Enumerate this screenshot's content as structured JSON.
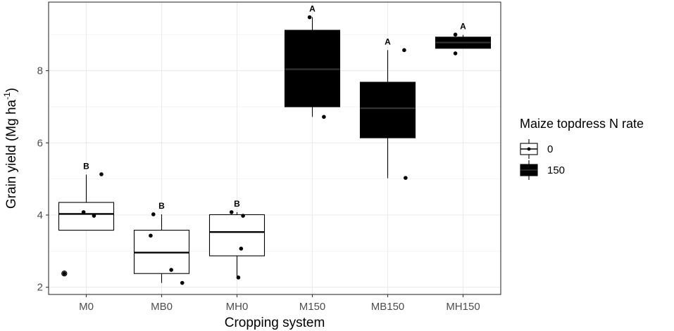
{
  "chart_data": {
    "type": "box",
    "xlabel": "Cropping system",
    "ylabel": "Grain yield (Mg ha",
    "ylabel_sup": "-1",
    "ylabel_close": ")",
    "ylim": [
      1.8,
      9.9
    ],
    "yticks": [
      2,
      4,
      6,
      8
    ],
    "y_tick_labels": [
      "2",
      "4",
      "6",
      "8"
    ],
    "grid": true,
    "legend": {
      "title": "Maize topdress N rate",
      "position": "right",
      "entries": [
        {
          "label": "0",
          "fill": "#ffffff"
        },
        {
          "label": "150",
          "fill": "#000000"
        }
      ]
    },
    "categories": [
      "M0",
      "MB0",
      "MH0",
      "M150",
      "MB150",
      "MH150"
    ],
    "boxes": [
      {
        "category": "M0",
        "group": "0",
        "whisker_low": 3.58,
        "q1": 3.58,
        "median": 4.03,
        "q3": 4.35,
        "whisker_high": 5.12,
        "letter": "B",
        "outliers": [
          2.38
        ],
        "points": [
          [
            -0.1,
            4.08
          ],
          [
            0.55,
            5.13
          ],
          [
            0.28,
            3.98
          ],
          [
            -0.8,
            2.38
          ]
        ]
      },
      {
        "category": "MB0",
        "group": "0",
        "whisker_low": 2.12,
        "q1": 2.38,
        "median": 2.96,
        "q3": 3.58,
        "whisker_high": 4.02,
        "letter": "B",
        "outliers": [],
        "points": [
          [
            -0.4,
            3.43
          ],
          [
            -0.3,
            4.02
          ],
          [
            0.35,
            2.48
          ],
          [
            0.75,
            2.12
          ]
        ]
      },
      {
        "category": "MH0",
        "group": "0",
        "whisker_low": 2.25,
        "q1": 2.87,
        "median": 3.53,
        "q3": 4.01,
        "whisker_high": 4.08,
        "letter": "B",
        "outliers": [],
        "points": [
          [
            -0.2,
            4.08
          ],
          [
            0.22,
            3.98
          ],
          [
            0.15,
            3.07
          ],
          [
            0.05,
            2.27
          ]
        ]
      },
      {
        "category": "M150",
        "group": "150",
        "whisker_low": 6.72,
        "q1": 7.0,
        "median": 8.04,
        "q3": 9.12,
        "whisker_high": 9.48,
        "letter": "A",
        "outliers": [],
        "points": [
          [
            -0.1,
            9.48
          ],
          [
            0.42,
            6.72
          ]
        ]
      },
      {
        "category": "MB150",
        "group": "150",
        "whisker_low": 5.02,
        "q1": 6.14,
        "median": 6.96,
        "q3": 7.68,
        "whisker_high": 8.57,
        "letter": "A",
        "outliers": [],
        "points": [
          [
            0.6,
            8.57
          ],
          [
            0.65,
            5.03
          ]
        ]
      },
      {
        "category": "MH150",
        "group": "150",
        "whisker_low": 8.62,
        "q1": 8.62,
        "median": 8.78,
        "q3": 8.93,
        "whisker_high": 8.99,
        "letter": "A",
        "outliers": [],
        "points": [
          [
            -0.28,
            9.0
          ],
          [
            -0.28,
            8.48
          ]
        ]
      }
    ]
  }
}
